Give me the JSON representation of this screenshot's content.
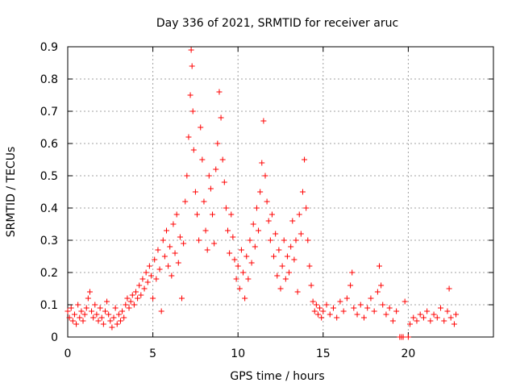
{
  "chart_data": {
    "type": "scatter",
    "title": "Day 336 of 2021, SRMTID for receiver aruc",
    "xlabel": "GPS time / hours",
    "ylabel": "SRMTID / TECUs",
    "xlim": [
      0,
      25
    ],
    "ylim": [
      0,
      0.9
    ],
    "grid": true,
    "marker": "+",
    "color": "#ff0000",
    "x_ticks": [
      0,
      5,
      10,
      15,
      20
    ],
    "x_tick_labels": [
      "0",
      "5",
      "10",
      "15",
      "20"
    ],
    "y_ticks": [
      0,
      0.1,
      0.2,
      0.3,
      0.4,
      0.5,
      0.6,
      0.7,
      0.8,
      0.9
    ],
    "y_tick_labels": [
      "0",
      "0.1",
      "0.2",
      "0.3",
      "0.4",
      "0.5",
      "0.6",
      "0.7",
      "0.8",
      "0.9"
    ],
    "series": [
      {
        "name": "SRMTID",
        "points": [
          [
            0.0,
            0.08
          ],
          [
            0.1,
            0.06
          ],
          [
            0.2,
            0.09
          ],
          [
            0.3,
            0.05
          ],
          [
            0.4,
            0.07
          ],
          [
            0.5,
            0.04
          ],
          [
            0.6,
            0.1
          ],
          [
            0.7,
            0.06
          ],
          [
            0.8,
            0.08
          ],
          [
            0.9,
            0.05
          ],
          [
            1.0,
            0.07
          ],
          [
            1.1,
            0.09
          ],
          [
            1.2,
            0.12
          ],
          [
            1.3,
            0.14
          ],
          [
            1.4,
            0.08
          ],
          [
            1.5,
            0.06
          ],
          [
            1.6,
            0.1
          ],
          [
            1.7,
            0.07
          ],
          [
            1.8,
            0.05
          ],
          [
            1.9,
            0.09
          ],
          [
            2.0,
            0.06
          ],
          [
            2.1,
            0.04
          ],
          [
            2.2,
            0.08
          ],
          [
            2.3,
            0.11
          ],
          [
            2.4,
            0.07
          ],
          [
            2.5,
            0.05
          ],
          [
            2.6,
            0.03
          ],
          [
            2.7,
            0.06
          ],
          [
            2.8,
            0.09
          ],
          [
            2.9,
            0.04
          ],
          [
            3.0,
            0.07
          ],
          [
            3.1,
            0.05
          ],
          [
            3.2,
            0.08
          ],
          [
            3.3,
            0.06
          ],
          [
            3.4,
            0.1
          ],
          [
            3.5,
            0.12
          ],
          [
            3.6,
            0.09
          ],
          [
            3.7,
            0.11
          ],
          [
            3.8,
            0.13
          ],
          [
            3.9,
            0.1
          ],
          [
            4.0,
            0.14
          ],
          [
            4.1,
            0.12
          ],
          [
            4.2,
            0.16
          ],
          [
            4.3,
            0.13
          ],
          [
            4.4,
            0.18
          ],
          [
            4.5,
            0.15
          ],
          [
            4.6,
            0.2
          ],
          [
            4.7,
            0.17
          ],
          [
            4.8,
            0.22
          ],
          [
            4.9,
            0.19
          ],
          [
            5.0,
            0.12
          ],
          [
            5.1,
            0.24
          ],
          [
            5.2,
            0.18
          ],
          [
            5.3,
            0.27
          ],
          [
            5.4,
            0.21
          ],
          [
            5.5,
            0.08
          ],
          [
            5.6,
            0.3
          ],
          [
            5.7,
            0.25
          ],
          [
            5.8,
            0.33
          ],
          [
            5.9,
            0.22
          ],
          [
            6.0,
            0.28
          ],
          [
            6.1,
            0.19
          ],
          [
            6.2,
            0.35
          ],
          [
            6.3,
            0.26
          ],
          [
            6.4,
            0.38
          ],
          [
            6.5,
            0.23
          ],
          [
            6.6,
            0.31
          ],
          [
            6.7,
            0.12
          ],
          [
            6.8,
            0.29
          ],
          [
            6.9,
            0.42
          ],
          [
            7.0,
            0.5
          ],
          [
            7.1,
            0.62
          ],
          [
            7.2,
            0.75
          ],
          [
            7.25,
            0.89
          ],
          [
            7.3,
            0.84
          ],
          [
            7.35,
            0.7
          ],
          [
            7.4,
            0.58
          ],
          [
            7.5,
            0.45
          ],
          [
            7.6,
            0.38
          ],
          [
            7.7,
            0.3
          ],
          [
            7.8,
            0.65
          ],
          [
            7.9,
            0.55
          ],
          [
            8.0,
            0.42
          ],
          [
            8.1,
            0.33
          ],
          [
            8.2,
            0.27
          ],
          [
            8.3,
            0.5
          ],
          [
            8.4,
            0.46
          ],
          [
            8.5,
            0.38
          ],
          [
            8.6,
            0.29
          ],
          [
            8.7,
            0.52
          ],
          [
            8.8,
            0.6
          ],
          [
            8.9,
            0.76
          ],
          [
            9.0,
            0.68
          ],
          [
            9.1,
            0.55
          ],
          [
            9.2,
            0.48
          ],
          [
            9.3,
            0.4
          ],
          [
            9.4,
            0.33
          ],
          [
            9.5,
            0.26
          ],
          [
            9.6,
            0.38
          ],
          [
            9.7,
            0.31
          ],
          [
            9.8,
            0.24
          ],
          [
            9.9,
            0.18
          ],
          [
            10.0,
            0.22
          ],
          [
            10.1,
            0.15
          ],
          [
            10.2,
            0.27
          ],
          [
            10.3,
            0.2
          ],
          [
            10.4,
            0.12
          ],
          [
            10.5,
            0.25
          ],
          [
            10.6,
            0.18
          ],
          [
            10.7,
            0.3
          ],
          [
            10.8,
            0.23
          ],
          [
            10.9,
            0.35
          ],
          [
            11.0,
            0.28
          ],
          [
            11.1,
            0.4
          ],
          [
            11.2,
            0.33
          ],
          [
            11.3,
            0.45
          ],
          [
            11.4,
            0.54
          ],
          [
            11.5,
            0.67
          ],
          [
            11.6,
            0.5
          ],
          [
            11.7,
            0.42
          ],
          [
            11.8,
            0.36
          ],
          [
            11.9,
            0.3
          ],
          [
            12.0,
            0.38
          ],
          [
            12.1,
            0.25
          ],
          [
            12.2,
            0.32
          ],
          [
            12.3,
            0.19
          ],
          [
            12.4,
            0.27
          ],
          [
            12.5,
            0.15
          ],
          [
            12.6,
            0.22
          ],
          [
            12.7,
            0.3
          ],
          [
            12.8,
            0.18
          ],
          [
            12.9,
            0.25
          ],
          [
            13.0,
            0.2
          ],
          [
            13.1,
            0.28
          ],
          [
            13.2,
            0.36
          ],
          [
            13.3,
            0.24
          ],
          [
            13.4,
            0.3
          ],
          [
            13.5,
            0.14
          ],
          [
            13.6,
            0.38
          ],
          [
            13.7,
            0.32
          ],
          [
            13.8,
            0.45
          ],
          [
            13.9,
            0.55
          ],
          [
            14.0,
            0.4
          ],
          [
            14.1,
            0.3
          ],
          [
            14.2,
            0.22
          ],
          [
            14.3,
            0.16
          ],
          [
            14.4,
            0.11
          ],
          [
            14.5,
            0.08
          ],
          [
            14.6,
            0.1
          ],
          [
            14.7,
            0.07
          ],
          [
            14.8,
            0.09
          ],
          [
            14.9,
            0.06
          ],
          [
            15.0,
            0.08
          ],
          [
            15.2,
            0.1
          ],
          [
            15.4,
            0.07
          ],
          [
            15.6,
            0.09
          ],
          [
            15.8,
            0.06
          ],
          [
            16.0,
            0.11
          ],
          [
            16.2,
            0.08
          ],
          [
            16.4,
            0.12
          ],
          [
            16.6,
            0.16
          ],
          [
            16.7,
            0.2
          ],
          [
            16.8,
            0.09
          ],
          [
            17.0,
            0.07
          ],
          [
            17.2,
            0.1
          ],
          [
            17.4,
            0.06
          ],
          [
            17.6,
            0.09
          ],
          [
            17.8,
            0.12
          ],
          [
            18.0,
            0.08
          ],
          [
            18.2,
            0.14
          ],
          [
            18.3,
            0.22
          ],
          [
            18.4,
            0.16
          ],
          [
            18.5,
            0.1
          ],
          [
            18.7,
            0.07
          ],
          [
            18.9,
            0.09
          ],
          [
            19.1,
            0.05
          ],
          [
            19.3,
            0.08
          ],
          [
            19.5,
            0.0
          ],
          [
            19.6,
            0.0
          ],
          [
            19.7,
            0.0
          ],
          [
            19.8,
            0.11
          ],
          [
            20.0,
            0.0
          ],
          [
            20.1,
            0.04
          ],
          [
            20.3,
            0.06
          ],
          [
            20.5,
            0.05
          ],
          [
            20.7,
            0.07
          ],
          [
            20.9,
            0.06
          ],
          [
            21.1,
            0.08
          ],
          [
            21.3,
            0.05
          ],
          [
            21.5,
            0.07
          ],
          [
            21.7,
            0.06
          ],
          [
            21.9,
            0.09
          ],
          [
            22.1,
            0.05
          ],
          [
            22.3,
            0.08
          ],
          [
            22.4,
            0.15
          ],
          [
            22.5,
            0.06
          ],
          [
            22.7,
            0.04
          ],
          [
            22.8,
            0.07
          ]
        ]
      }
    ]
  }
}
